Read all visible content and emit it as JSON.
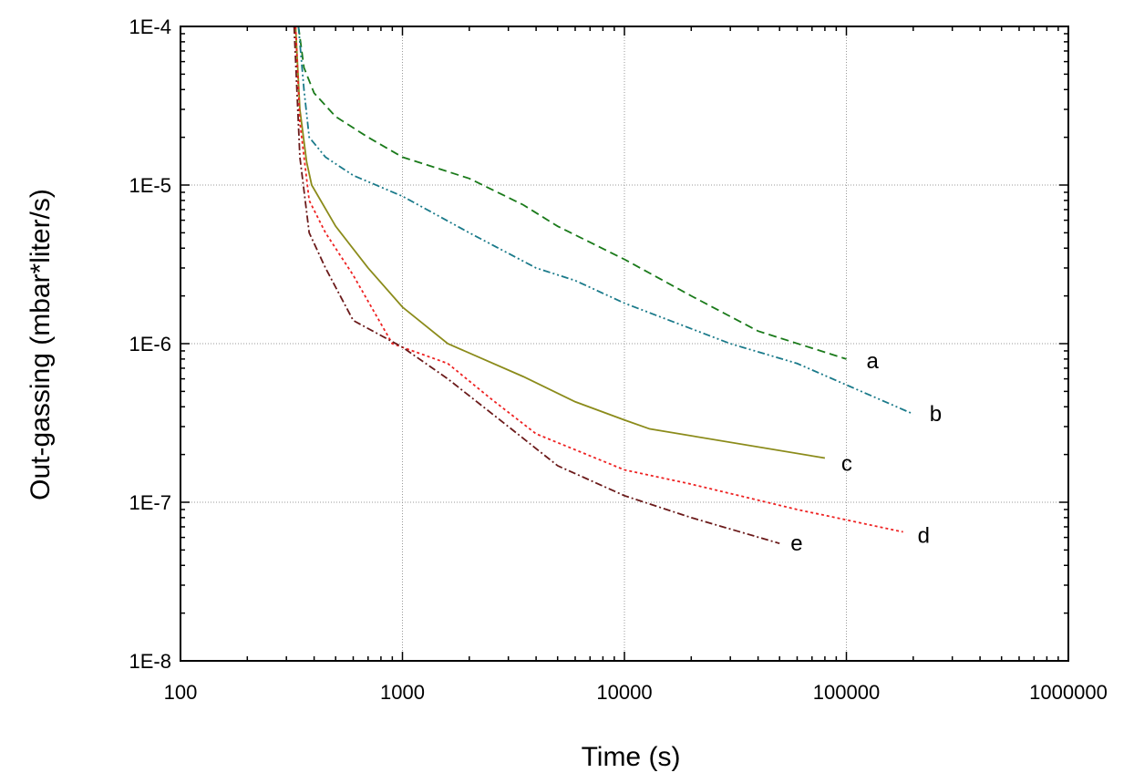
{
  "chart_data": {
    "type": "line",
    "xlabel": "Time (s)",
    "ylabel": "Out-gassing (mbar*liter/s)",
    "xscale": "log",
    "yscale": "log",
    "xlim": [
      100,
      1000000
    ],
    "ylim": [
      1e-08,
      0.0001
    ],
    "x_tick_labels": [
      "100",
      "1000",
      "10000",
      "100000",
      "1000000"
    ],
    "y_tick_labels": [
      "1E-8",
      "1E-7",
      "1E-6",
      "1E-5",
      "1E-4"
    ],
    "grid": true,
    "series": [
      {
        "name": "a",
        "color": "#1a7a1a",
        "dash": "dashed",
        "points": [
          [
            340,
            0.0001
          ],
          [
            360,
            5.5e-05
          ],
          [
            400,
            3.8e-05
          ],
          [
            500,
            2.7e-05
          ],
          [
            700,
            2e-05
          ],
          [
            1000,
            1.5e-05
          ],
          [
            2000,
            1.1e-05
          ],
          [
            3500,
            7.5e-06
          ],
          [
            5000,
            5.5e-06
          ],
          [
            10000,
            3.4e-06
          ],
          [
            20000,
            2e-06
          ],
          [
            40000,
            1.2e-06
          ],
          [
            100000,
            8e-07
          ]
        ]
      },
      {
        "name": "b",
        "color": "#1a7a8a",
        "dash": "dash-dot-dot",
        "points": [
          [
            340,
            0.0001
          ],
          [
            360,
            4e-05
          ],
          [
            380,
            2e-05
          ],
          [
            450,
            1.5e-05
          ],
          [
            600,
            1.15e-05
          ],
          [
            1000,
            8.5e-06
          ],
          [
            2000,
            5e-06
          ],
          [
            4000,
            3e-06
          ],
          [
            6000,
            2.5e-06
          ],
          [
            10000,
            1.8e-06
          ],
          [
            30000,
            1e-06
          ],
          [
            60000,
            7.5e-07
          ],
          [
            200000,
            3.6e-07
          ]
        ]
      },
      {
        "name": "c",
        "color": "#8b8b1a",
        "dash": "solid",
        "points": [
          [
            330,
            0.0001
          ],
          [
            345,
            3e-05
          ],
          [
            370,
            1.4e-05
          ],
          [
            390,
            1e-05
          ],
          [
            500,
            5.5e-06
          ],
          [
            700,
            3e-06
          ],
          [
            1000,
            1.7e-06
          ],
          [
            1600,
            1e-06
          ],
          [
            3500,
            6.2e-07
          ],
          [
            6000,
            4.3e-07
          ],
          [
            10000,
            3.3e-07
          ],
          [
            13000,
            2.9e-07
          ],
          [
            80000,
            1.9e-07
          ]
        ]
      },
      {
        "name": "d",
        "color": "#ee2222",
        "dash": "dotted",
        "points": [
          [
            330,
            0.0001
          ],
          [
            345,
            2.5e-05
          ],
          [
            380,
            8e-06
          ],
          [
            450,
            5e-06
          ],
          [
            600,
            2.7e-06
          ],
          [
            900,
            1e-06
          ],
          [
            1600,
            7.5e-07
          ],
          [
            2500,
            4.5e-07
          ],
          [
            4000,
            2.7e-07
          ],
          [
            10000,
            1.6e-07
          ],
          [
            20000,
            1.3e-07
          ],
          [
            60000,
            9e-08
          ],
          [
            180000,
            6.5e-08
          ]
        ]
      },
      {
        "name": "e",
        "color": "#6b1a1a",
        "dash": "dash-dot",
        "points": [
          [
            325,
            0.0001
          ],
          [
            345,
            1.5e-05
          ],
          [
            380,
            5e-06
          ],
          [
            450,
            3e-06
          ],
          [
            600,
            1.4e-06
          ],
          [
            1000,
            9.5e-07
          ],
          [
            1600,
            6e-07
          ],
          [
            3000,
            3e-07
          ],
          [
            5000,
            1.7e-07
          ],
          [
            10000,
            1.1e-07
          ],
          [
            20000,
            8e-08
          ],
          [
            50000,
            5.5e-08
          ]
        ]
      }
    ]
  }
}
